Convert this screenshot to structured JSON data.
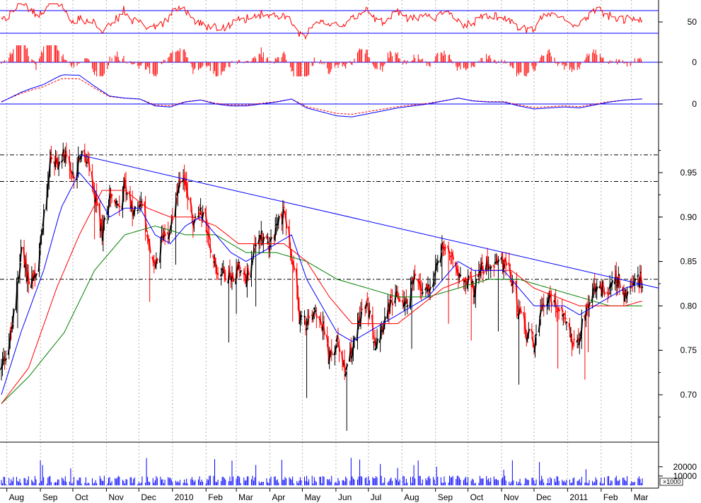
{
  "chart_data": {
    "type": "candlestick",
    "title": "",
    "xlabel": "",
    "ylabel": "",
    "grid": "vertical dotted lines at month starts",
    "x": {
      "start_date": "2009-07-27",
      "end_date": "2011-03-11",
      "month_labels": [
        {
          "date": "2009-08-01",
          "label": "Aug"
        },
        {
          "date": "2009-09-01",
          "label": "Sep"
        },
        {
          "date": "2009-10-01",
          "label": "Oct"
        },
        {
          "date": "2009-11-01",
          "label": "Nov"
        },
        {
          "date": "2009-12-01",
          "label": "Dec"
        },
        {
          "date": "2010-01-01",
          "label": "2010"
        },
        {
          "date": "2010-02-01",
          "label": "Feb"
        },
        {
          "date": "2010-03-01",
          "label": "Mar"
        },
        {
          "date": "2010-04-01",
          "label": "Apr"
        },
        {
          "date": "2010-05-01",
          "label": "May"
        },
        {
          "date": "2010-06-01",
          "label": "Jun"
        },
        {
          "date": "2010-07-01",
          "label": "Jul"
        },
        {
          "date": "2010-08-01",
          "label": "Aug"
        },
        {
          "date": "2010-09-01",
          "label": "Sep"
        },
        {
          "date": "2010-10-01",
          "label": "Oct"
        },
        {
          "date": "2010-11-01",
          "label": "Nov"
        },
        {
          "date": "2010-12-01",
          "label": "Dec"
        },
        {
          "date": "2011-01-01",
          "label": "2011"
        },
        {
          "date": "2011-02-01",
          "label": "Feb"
        },
        {
          "date": "2011-03-01",
          "label": "Mar"
        }
      ]
    },
    "price": {
      "ylim": [
        0.655,
        1.0
      ],
      "ticks": [
        {
          "value": 0.7,
          "label": "0.70"
        },
        {
          "value": 0.75,
          "label": "0.75"
        },
        {
          "value": 0.8,
          "label": "0.80"
        },
        {
          "value": 0.85,
          "label": "0.85"
        },
        {
          "value": 0.9,
          "label": "0.90"
        },
        {
          "value": 0.95,
          "label": "0.95"
        }
      ],
      "close_path": [
        [
          "2009-07-27",
          0.73
        ],
        [
          "2009-08-05",
          0.77
        ],
        [
          "2009-08-14",
          0.86
        ],
        [
          "2009-08-21",
          0.83
        ],
        [
          "2009-08-28",
          0.83
        ],
        [
          "2009-09-04",
          0.9
        ],
        [
          "2009-09-10",
          0.97
        ],
        [
          "2009-09-16",
          0.96
        ],
        [
          "2009-09-23",
          0.97
        ],
        [
          "2009-09-30",
          0.94
        ],
        [
          "2009-10-07",
          0.97
        ],
        [
          "2009-10-14",
          0.96
        ],
        [
          "2009-10-21",
          0.92
        ],
        [
          "2009-10-28",
          0.88
        ],
        [
          "2009-11-04",
          0.93
        ],
        [
          "2009-11-11",
          0.91
        ],
        [
          "2009-11-18",
          0.94
        ],
        [
          "2009-11-25",
          0.9
        ],
        [
          "2009-12-02",
          0.92
        ],
        [
          "2009-12-09",
          0.88
        ],
        [
          "2009-12-16",
          0.84
        ],
        [
          "2009-12-23",
          0.88
        ],
        [
          "2009-12-30",
          0.89
        ],
        [
          "2010-01-06",
          0.93
        ],
        [
          "2010-01-13",
          0.94
        ],
        [
          "2010-01-20",
          0.89
        ],
        [
          "2010-01-27",
          0.91
        ],
        [
          "2010-02-03",
          0.88
        ],
        [
          "2010-02-10",
          0.84
        ],
        [
          "2010-02-17",
          0.84
        ],
        [
          "2010-02-24",
          0.83
        ],
        [
          "2010-03-03",
          0.85
        ],
        [
          "2010-03-10",
          0.83
        ],
        [
          "2010-03-17",
          0.86
        ],
        [
          "2010-03-24",
          0.88
        ],
        [
          "2010-03-31",
          0.87
        ],
        [
          "2010-04-07",
          0.89
        ],
        [
          "2010-04-14",
          0.91
        ],
        [
          "2010-04-21",
          0.85
        ],
        [
          "2010-04-28",
          0.79
        ],
        [
          "2010-05-05",
          0.78
        ],
        [
          "2010-05-12",
          0.8
        ],
        [
          "2010-05-19",
          0.78
        ],
        [
          "2010-05-26",
          0.74
        ],
        [
          "2010-06-02",
          0.76
        ],
        [
          "2010-06-09",
          0.73
        ],
        [
          "2010-06-16",
          0.75
        ],
        [
          "2010-06-23",
          0.79
        ],
        [
          "2010-06-30",
          0.8
        ],
        [
          "2010-07-07",
          0.76
        ],
        [
          "2010-07-14",
          0.78
        ],
        [
          "2010-07-21",
          0.8
        ],
        [
          "2010-07-28",
          0.81
        ],
        [
          "2010-08-04",
          0.8
        ],
        [
          "2010-08-11",
          0.83
        ],
        [
          "2010-08-18",
          0.82
        ],
        [
          "2010-08-25",
          0.82
        ],
        [
          "2010-09-01",
          0.84
        ],
        [
          "2010-09-08",
          0.87
        ],
        [
          "2010-09-15",
          0.86
        ],
        [
          "2010-09-22",
          0.84
        ],
        [
          "2010-09-29",
          0.83
        ],
        [
          "2010-10-06",
          0.82
        ],
        [
          "2010-10-13",
          0.84
        ],
        [
          "2010-10-20",
          0.85
        ],
        [
          "2010-10-27",
          0.85
        ],
        [
          "2010-11-03",
          0.85
        ],
        [
          "2010-11-10",
          0.83
        ],
        [
          "2010-11-17",
          0.79
        ],
        [
          "2010-11-24",
          0.77
        ],
        [
          "2010-12-01",
          0.76
        ],
        [
          "2010-12-08",
          0.8
        ],
        [
          "2010-12-15",
          0.81
        ],
        [
          "2010-12-22",
          0.8
        ],
        [
          "2010-12-29",
          0.79
        ],
        [
          "2011-01-05",
          0.76
        ],
        [
          "2011-01-12",
          0.77
        ],
        [
          "2011-01-19",
          0.8
        ],
        [
          "2011-01-26",
          0.82
        ],
        [
          "2011-02-02",
          0.82
        ],
        [
          "2011-02-09",
          0.82
        ],
        [
          "2011-02-16",
          0.83
        ],
        [
          "2011-02-23",
          0.81
        ],
        [
          "2011-03-02",
          0.82
        ],
        [
          "2011-03-09",
          0.83
        ]
      ],
      "ma_blue": [
        [
          "2009-07-27",
          0.7
        ],
        [
          "2009-08-14",
          0.77
        ],
        [
          "2009-09-04",
          0.84
        ],
        [
          "2009-09-20",
          0.91
        ],
        [
          "2009-10-07",
          0.95
        ],
        [
          "2009-10-21",
          0.93
        ],
        [
          "2009-11-04",
          0.9
        ],
        [
          "2009-11-18",
          0.91
        ],
        [
          "2009-12-02",
          0.91
        ],
        [
          "2009-12-16",
          0.88
        ],
        [
          "2009-12-30",
          0.87
        ],
        [
          "2010-01-13",
          0.89
        ],
        [
          "2010-01-27",
          0.9
        ],
        [
          "2010-02-10",
          0.88
        ],
        [
          "2010-02-24",
          0.86
        ],
        [
          "2010-03-10",
          0.85
        ],
        [
          "2010-03-24",
          0.86
        ],
        [
          "2010-04-07",
          0.87
        ],
        [
          "2010-04-21",
          0.88
        ],
        [
          "2010-05-05",
          0.83
        ],
        [
          "2010-05-19",
          0.8
        ],
        [
          "2010-06-02",
          0.77
        ],
        [
          "2010-06-16",
          0.76
        ],
        [
          "2010-06-30",
          0.77
        ],
        [
          "2010-07-14",
          0.78
        ],
        [
          "2010-07-28",
          0.79
        ],
        [
          "2010-08-11",
          0.8
        ],
        [
          "2010-08-25",
          0.81
        ],
        [
          "2010-09-08",
          0.83
        ],
        [
          "2010-09-22",
          0.85
        ],
        [
          "2010-10-06",
          0.84
        ],
        [
          "2010-10-20",
          0.84
        ],
        [
          "2010-11-03",
          0.84
        ],
        [
          "2010-11-17",
          0.82
        ],
        [
          "2010-12-01",
          0.8
        ],
        [
          "2010-12-15",
          0.8
        ],
        [
          "2010-12-29",
          0.8
        ],
        [
          "2011-01-12",
          0.79
        ],
        [
          "2011-01-26",
          0.8
        ],
        [
          "2011-02-09",
          0.81
        ],
        [
          "2011-02-23",
          0.82
        ],
        [
          "2011-03-09",
          0.825
        ]
      ],
      "ma_red": [
        [
          "2009-07-27",
          0.69
        ],
        [
          "2009-08-21",
          0.73
        ],
        [
          "2009-09-16",
          0.82
        ],
        [
          "2009-10-07",
          0.88
        ],
        [
          "2009-10-28",
          0.93
        ],
        [
          "2009-11-18",
          0.93
        ],
        [
          "2009-12-09",
          0.91
        ],
        [
          "2009-12-30",
          0.9
        ],
        [
          "2010-01-20",
          0.9
        ],
        [
          "2010-02-10",
          0.89
        ],
        [
          "2010-03-03",
          0.87
        ],
        [
          "2010-03-24",
          0.87
        ],
        [
          "2010-04-14",
          0.87
        ],
        [
          "2010-05-05",
          0.85
        ],
        [
          "2010-05-26",
          0.81
        ],
        [
          "2010-06-16",
          0.78
        ],
        [
          "2010-07-07",
          0.78
        ],
        [
          "2010-07-28",
          0.78
        ],
        [
          "2010-08-18",
          0.8
        ],
        [
          "2010-09-08",
          0.82
        ],
        [
          "2010-09-29",
          0.83
        ],
        [
          "2010-10-20",
          0.84
        ],
        [
          "2010-11-10",
          0.84
        ],
        [
          "2010-12-01",
          0.82
        ],
        [
          "2010-12-22",
          0.81
        ],
        [
          "2011-01-12",
          0.8
        ],
        [
          "2011-02-02",
          0.8
        ],
        [
          "2011-02-23",
          0.8
        ],
        [
          "2011-03-09",
          0.805
        ]
      ],
      "ma_green": [
        [
          "2009-07-27",
          0.69
        ],
        [
          "2009-08-21",
          0.72
        ],
        [
          "2009-09-23",
          0.77
        ],
        [
          "2009-10-21",
          0.84
        ],
        [
          "2009-11-18",
          0.88
        ],
        [
          "2009-12-16",
          0.89
        ],
        [
          "2010-01-13",
          0.88
        ],
        [
          "2010-02-10",
          0.88
        ],
        [
          "2010-03-10",
          0.86
        ],
        [
          "2010-04-07",
          0.86
        ],
        [
          "2010-05-05",
          0.85
        ],
        [
          "2010-06-02",
          0.83
        ],
        [
          "2010-06-30",
          0.82
        ],
        [
          "2010-07-28",
          0.81
        ],
        [
          "2010-08-25",
          0.81
        ],
        [
          "2010-09-22",
          0.82
        ],
        [
          "2010-10-20",
          0.83
        ],
        [
          "2010-11-17",
          0.83
        ],
        [
          "2010-12-15",
          0.82
        ],
        [
          "2011-01-12",
          0.81
        ],
        [
          "2011-02-09",
          0.8
        ],
        [
          "2011-03-09",
          0.8
        ]
      ],
      "trendline": {
        "from": [
          "2009-10-07",
          0.97
        ],
        "to": [
          "2011-03-16",
          0.82
        ]
      },
      "horizontal_levels": [
        0.97,
        0.94,
        0.83
      ]
    },
    "rsi": {
      "ticks": [
        {
          "value": 50,
          "label": "50"
        }
      ],
      "levels": [
        70,
        30
      ]
    },
    "momentum": {
      "ticks": [
        {
          "value": 0,
          "label": "0"
        }
      ]
    },
    "macd": {
      "ticks": [
        {
          "value": 0,
          "label": "0"
        }
      ]
    },
    "volume": {
      "unit_label": "×1000",
      "ticks": [
        {
          "value": 10000,
          "label": "10000"
        },
        {
          "value": 20000,
          "label": "20000"
        }
      ],
      "ylim": [
        0,
        45000
      ]
    },
    "colors": {
      "up": "#000000",
      "down": "#ff0000",
      "ma_fast": "#0000ff",
      "ma_mid": "#ff0000",
      "ma_slow": "#008000",
      "trendline": "#0000ff",
      "volume": "#0000ff",
      "indicator": "#ff0000",
      "grid": "#b4b4b4"
    }
  }
}
